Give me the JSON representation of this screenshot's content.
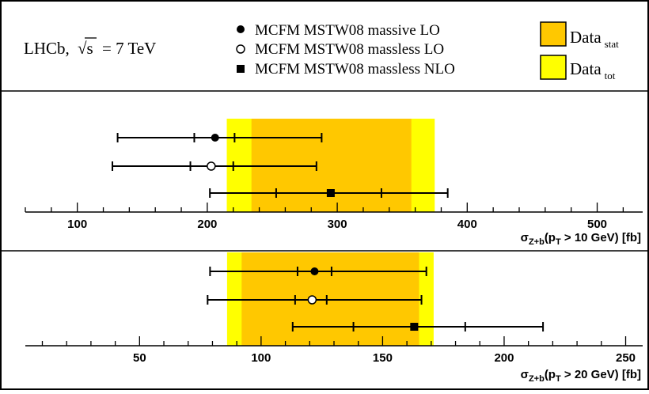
{
  "experiment_label": {
    "main": "LHCb,",
    "sqrt": "√s",
    "energy": "= 7 TeV"
  },
  "legend": {
    "markers": [
      {
        "label": "MCFM MSTW08 massive LO",
        "marker": "filled-circle"
      },
      {
        "label": "MCFM MSTW08 massless LO",
        "marker": "open-circle"
      },
      {
        "label": "MCFM MSTW08 massless NLO",
        "marker": "filled-square"
      }
    ],
    "bands": [
      {
        "label": "Data",
        "sub": "stat",
        "color": "#ffc800"
      },
      {
        "label": "Data",
        "sub": "tot",
        "color": "#ffff00"
      }
    ]
  },
  "colors": {
    "stat": "#ffc800",
    "tot": "#ffff00",
    "line": "#000000"
  },
  "chart_data": [
    {
      "type": "scatter",
      "xlim": [
        60,
        535
      ],
      "ticks": [
        100,
        200,
        300,
        400,
        500
      ],
      "tick_labels": [
        "100",
        "200",
        "300",
        "400",
        "500"
      ],
      "xlabel": {
        "sigma": "σ",
        "sub": "Z+b",
        "paren": "(p",
        "sub2": "T",
        "rest": " > 10 GeV) [fb]"
      },
      "data_band": {
        "tot": [
          215,
          375
        ],
        "stat": [
          234,
          357
        ]
      },
      "points": [
        {
          "name": "MCFM MSTW08 massive LO",
          "marker": "filled-circle",
          "value": 206,
          "inner": [
            190,
            221
          ],
          "outer": [
            131,
            288
          ]
        },
        {
          "name": "MCFM MSTW08 massless LO",
          "marker": "open-circle",
          "value": 203,
          "inner": [
            187,
            220
          ],
          "outer": [
            127,
            284
          ]
        },
        {
          "name": "MCFM MSTW08 massless NLO",
          "marker": "filled-square",
          "value": 295,
          "inner": [
            253,
            334
          ],
          "outer": [
            202,
            385
          ]
        }
      ]
    },
    {
      "type": "scatter",
      "xlim": [
        3,
        257
      ],
      "ticks": [
        50,
        100,
        150,
        200,
        250
      ],
      "tick_labels": [
        "50",
        "100",
        "150",
        "200",
        "250"
      ],
      "xlabel": {
        "sigma": "σ",
        "sub": "Z+b",
        "paren": "(p",
        "sub2": "T",
        "rest": " > 20 GeV) [fb]"
      },
      "data_band": {
        "tot": [
          86,
          171
        ],
        "stat": [
          92,
          165
        ]
      },
      "points": [
        {
          "name": "MCFM MSTW08 massive LO",
          "marker": "filled-circle",
          "value": 122,
          "inner": [
            115,
            129
          ],
          "outer": [
            79,
            168
          ]
        },
        {
          "name": "MCFM MSTW08 massless LO",
          "marker": "open-circle",
          "value": 121,
          "inner": [
            114,
            127
          ],
          "outer": [
            78,
            166
          ]
        },
        {
          "name": "MCFM MSTW08 massless NLO",
          "marker": "filled-square",
          "value": 163,
          "inner": [
            138,
            184
          ],
          "outer": [
            113,
            216
          ]
        }
      ]
    }
  ]
}
